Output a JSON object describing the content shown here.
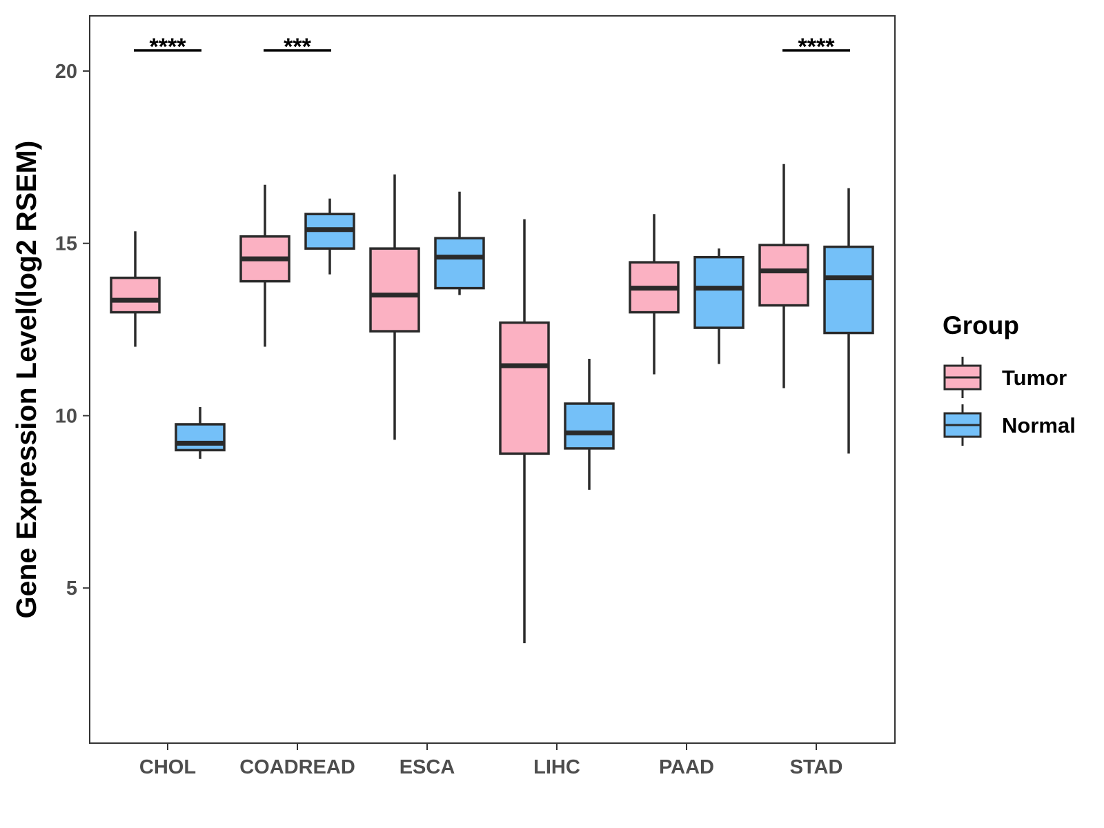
{
  "chart_data": {
    "type": "box",
    "ylabel": "Gene Expression Level(log2 RSEM)",
    "ylim": [
      0.5,
      21.6
    ],
    "yticks": [
      5,
      10,
      15,
      20
    ],
    "categories": [
      "CHOL",
      "COADREAD",
      "ESCA",
      "LIHC",
      "PAAD",
      "STAD"
    ],
    "grid": false,
    "legend": {
      "title": "Group",
      "position": "right",
      "entries": [
        "Tumor",
        "Normal"
      ]
    },
    "colors": {
      "Tumor": "#fbb1c2",
      "Normal": "#74c0f8",
      "outline": "#2a2a2a"
    },
    "series": [
      {
        "name": "Tumor",
        "boxes": [
          {
            "category": "CHOL",
            "min": 12.0,
            "q1": 13.0,
            "median": 13.35,
            "q3": 14.0,
            "max": 15.35
          },
          {
            "category": "COADREAD",
            "min": 12.0,
            "q1": 13.9,
            "median": 14.55,
            "q3": 15.2,
            "max": 16.7
          },
          {
            "category": "ESCA",
            "min": 9.3,
            "q1": 12.45,
            "median": 13.5,
            "q3": 14.85,
            "max": 17.0
          },
          {
            "category": "LIHC",
            "min": 3.4,
            "q1": 8.9,
            "median": 11.45,
            "q3": 12.7,
            "max": 15.7
          },
          {
            "category": "PAAD",
            "min": 11.2,
            "q1": 13.0,
            "median": 13.7,
            "q3": 14.45,
            "max": 15.85
          },
          {
            "category": "STAD",
            "min": 10.8,
            "q1": 13.2,
            "median": 14.2,
            "q3": 14.95,
            "max": 17.3
          }
        ]
      },
      {
        "name": "Normal",
        "boxes": [
          {
            "category": "CHOL",
            "min": 8.75,
            "q1": 9.0,
            "median": 9.2,
            "q3": 9.75,
            "max": 10.25
          },
          {
            "category": "COADREAD",
            "min": 14.1,
            "q1": 14.85,
            "median": 15.4,
            "q3": 15.85,
            "max": 16.3
          },
          {
            "category": "ESCA",
            "min": 13.5,
            "q1": 13.7,
            "median": 14.6,
            "q3": 15.15,
            "max": 16.5
          },
          {
            "category": "LIHC",
            "min": 7.85,
            "q1": 9.05,
            "median": 9.5,
            "q3": 10.35,
            "max": 11.65
          },
          {
            "category": "PAAD",
            "min": 11.5,
            "q1": 12.55,
            "median": 13.7,
            "q3": 14.6,
            "max": 14.85
          },
          {
            "category": "STAD",
            "min": 8.9,
            "q1": 12.4,
            "median": 14.0,
            "q3": 14.9,
            "max": 16.6
          }
        ]
      }
    ],
    "annotations": [
      {
        "category": "CHOL",
        "label": "****",
        "y": 20.6
      },
      {
        "category": "COADREAD",
        "label": "***",
        "y": 20.6
      },
      {
        "category": "STAD",
        "label": "****",
        "y": 20.6
      }
    ]
  }
}
